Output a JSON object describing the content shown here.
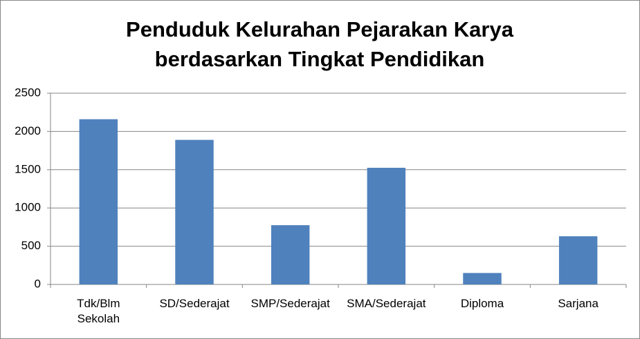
{
  "chart_data": {
    "type": "bar",
    "title": [
      "Penduduk Kelurahan Pejarakan Karya",
      "berdasarkan Tingkat Pendidikan"
    ],
    "categories": [
      "Tdk/Blm\nSekolah",
      "SD/Sederajat",
      "SMP/Sederajat",
      "SMA/Sederajat",
      "Diploma",
      "Sarjana"
    ],
    "values": [
      2160,
      1890,
      775,
      1525,
      150,
      630
    ],
    "color": "#4f81bd",
    "ylim": [
      0,
      2500
    ],
    "yticks": [
      0,
      500,
      1000,
      1500,
      2000,
      2500
    ],
    "grid": true
  }
}
